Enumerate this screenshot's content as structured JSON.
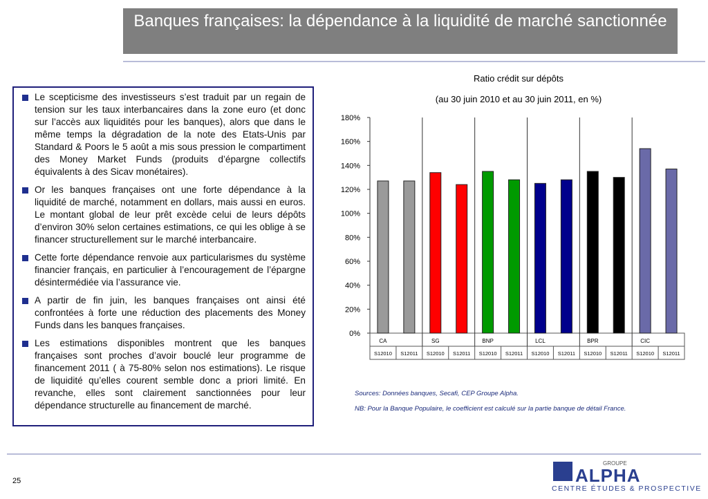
{
  "header": {
    "title": "Banques françaises: la  dépendance à la liquidité de marché sanctionnée"
  },
  "bullets": [
    "Le scepticisme des investisseurs s’est traduit par un regain de tension sur les taux interbancaires dans la zone euro  (et donc sur l’accès aux liquidités pour les banques), alors que dans le même temps la dégradation de la note des Etats-Unis par Standard & Poors le 5  août a mis sous pression le compartiment des Money Market Funds (produits d’épargne collectifs équivalents à des Sicav monétaires).",
    "Or les banques françaises ont une forte dépendance à la liquidité de marché, notamment en dollars, mais aussi en euros. Le montant global de leur prêt excède celui de leurs dépôts d’environ 30% selon certaines estimations, ce qui les oblige à se financer structurellement sur le marché interbancaire.",
    "Cette forte dépendance renvoie aux particularismes du système financier français, en particulier à l’encouragement de l’épargne désintermédiée via l’assurance vie.",
    "A partir de fin juin, les banques françaises ont ainsi été confrontées à forte une réduction des placements des Money Funds dans les banques françaises.",
    "Les estimations disponibles montrent que les banques françaises sont proches d’avoir bouclé leur programme de financement 2011 ( à 75-80% selon nos estimations). Le risque de liquidité qu’elles courent semble donc a priori limité. En revanche, elles sont clairement sanctionnées pour leur dépendance structurelle au financement de marché."
  ],
  "chart_data": {
    "type": "bar",
    "title": "Ratio crédit sur dépôts",
    "subtitle": "(au 30 juin 2010 et au 30 juin 2011, en %)",
    "categories": [
      "S12010",
      "S12011",
      "S12010",
      "S12011",
      "S12010",
      "S12011",
      "S12010",
      "S12011",
      "S12010",
      "S12011",
      "S12010",
      "S12011"
    ],
    "groups": [
      "CA",
      "SG",
      "BNP",
      "LCL",
      "BPR",
      "CIC"
    ],
    "colors": [
      "#9a9a9a",
      "#ff0000",
      "#009a00",
      "#00008c",
      "#000000",
      "#6a6aa8"
    ],
    "values": [
      127,
      127,
      134,
      124,
      135,
      128,
      125,
      128,
      135,
      130,
      154,
      137
    ],
    "ylim": [
      0,
      180
    ],
    "yticks": [
      {
        "value": 0,
        "label": "0%"
      },
      {
        "value": 20,
        "label": "20%"
      },
      {
        "value": 40,
        "label": "40%"
      },
      {
        "value": 60,
        "label": "60%"
      },
      {
        "value": 80,
        "label": "80%"
      },
      {
        "value": 100,
        "label": "100%"
      },
      {
        "value": 120,
        "label": "120%"
      },
      {
        "value": 140,
        "label": "140%"
      },
      {
        "value": 160,
        "label": "160%"
      },
      {
        "value": 180,
        "label": "180%"
      }
    ]
  },
  "notes": [
    "Sources: Données banques, Secafi, CEP Groupe Alpha.",
    "NB: Pour la Banque Populaire, le coefficient est calculé sur la partie banque de détail France."
  ],
  "page_number": "25",
  "logo": {
    "group": "GROUPE",
    "name": "ALPHA",
    "tagline": "CENTRE ÉTUDES & PROSPECTIVE"
  }
}
